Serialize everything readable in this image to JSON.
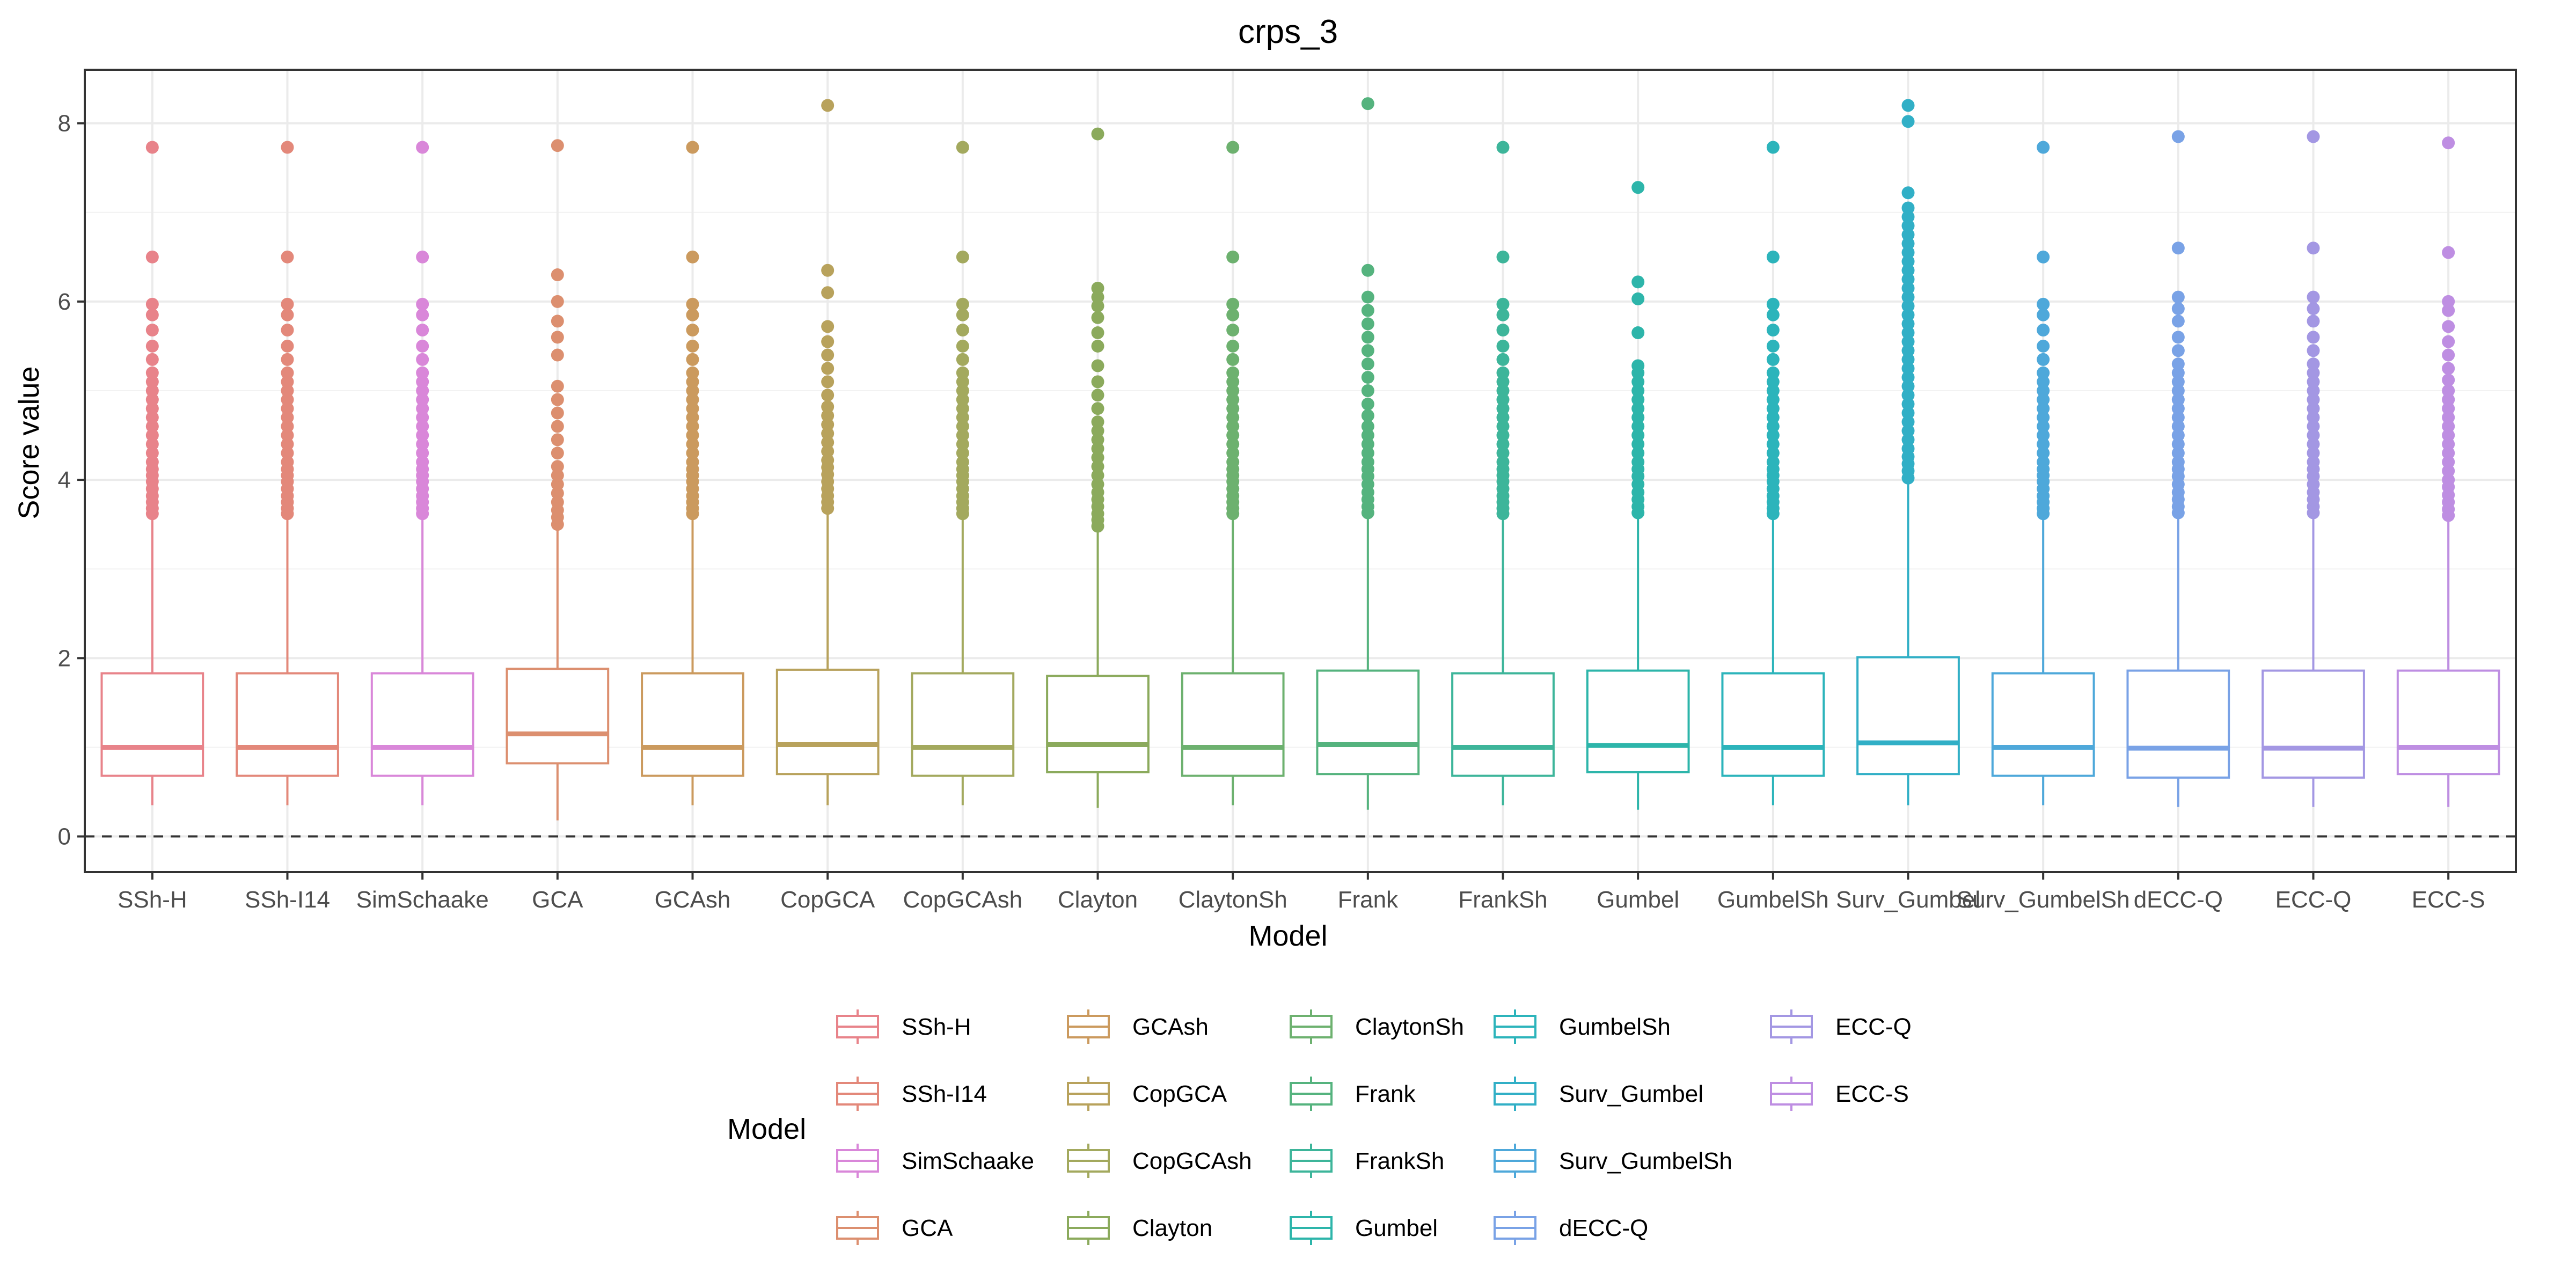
{
  "chart_data": {
    "type": "box",
    "title": "crps_3",
    "xlabel": "Model",
    "ylabel": "Score value",
    "ylim": [
      -0.4,
      8.6
    ],
    "yticks": [
      0,
      2,
      4,
      6,
      8
    ],
    "grid": true,
    "reference_line": {
      "y": 0,
      "style": "dashed"
    },
    "legend": {
      "title": "Model",
      "position": "bottom"
    },
    "categories": [
      "SSh-H",
      "SSh-I14",
      "SimSchaake",
      "GCA",
      "GCAsh",
      "CopGCA",
      "CopGCAsh",
      "Clayton",
      "ClaytonSh",
      "Frank",
      "FrankSh",
      "Gumbel",
      "GumbelSh",
      "Surv_Gumbel",
      "Surv_GumbelSh",
      "dECC-Q",
      "ECC-Q",
      "ECC-S"
    ],
    "colors": [
      "#F8766D",
      "#EC8239",
      "#DB72FB",
      "#E58700",
      "#C99800",
      "#A3A500",
      "#6BB100",
      "#7CAE00",
      "#00BA38",
      "#00C08B",
      "#00BFC4",
      "#00C1A3",
      "#00BCD8",
      "#00B0F6",
      "#35A2FF",
      "#619CFF",
      "#9590FF",
      "#C77CFF"
    ],
    "series": [
      {
        "name": "SSh-H",
        "color": "#E8838A",
        "q1": 0.68,
        "median": 1.0,
        "q3": 1.83,
        "whisker_low": 0.35,
        "whisker_high": 3.6,
        "outliers": [
          3.62,
          3.68,
          3.75,
          3.82,
          3.9,
          3.98,
          4.05,
          4.12,
          4.2,
          4.3,
          4.4,
          4.5,
          4.6,
          4.7,
          4.8,
          4.9,
          5.0,
          5.1,
          5.2,
          5.35,
          5.5,
          5.68,
          5.85,
          5.97,
          6.5,
          7.73
        ]
      },
      {
        "name": "SSh-I14",
        "color": "#E3887A",
        "q1": 0.68,
        "median": 1.0,
        "q3": 1.83,
        "whisker_low": 0.35,
        "whisker_high": 3.6,
        "outliers": [
          3.62,
          3.68,
          3.75,
          3.82,
          3.9,
          3.98,
          4.05,
          4.12,
          4.2,
          4.3,
          4.4,
          4.5,
          4.6,
          4.7,
          4.8,
          4.9,
          5.0,
          5.1,
          5.2,
          5.35,
          5.5,
          5.68,
          5.85,
          5.97,
          6.5,
          7.73
        ]
      },
      {
        "name": "SimSchaake",
        "color": "#D987D9",
        "q1": 0.68,
        "median": 1.0,
        "q3": 1.83,
        "whisker_low": 0.35,
        "whisker_high": 3.6,
        "outliers": [
          3.62,
          3.68,
          3.75,
          3.82,
          3.9,
          3.98,
          4.05,
          4.12,
          4.2,
          4.3,
          4.4,
          4.5,
          4.6,
          4.7,
          4.8,
          4.9,
          5.0,
          5.1,
          5.2,
          5.35,
          5.5,
          5.68,
          5.85,
          5.97,
          6.5,
          7.73
        ]
      },
      {
        "name": "GCA",
        "color": "#DC8F6F",
        "q1": 0.82,
        "median": 1.15,
        "q3": 1.88,
        "whisker_low": 0.18,
        "whisker_high": 3.45,
        "outliers": [
          3.5,
          3.58,
          3.66,
          3.75,
          3.85,
          3.95,
          4.05,
          4.15,
          4.3,
          4.45,
          4.6,
          4.75,
          4.9,
          5.05,
          5.4,
          5.6,
          5.78,
          6.0,
          6.3,
          7.75
        ]
      },
      {
        "name": "GCAsh",
        "color": "#CB9A5E",
        "q1": 0.68,
        "median": 1.0,
        "q3": 1.83,
        "whisker_low": 0.35,
        "whisker_high": 3.6,
        "outliers": [
          3.62,
          3.68,
          3.75,
          3.82,
          3.9,
          3.98,
          4.05,
          4.12,
          4.2,
          4.3,
          4.4,
          4.5,
          4.6,
          4.7,
          4.8,
          4.9,
          5.0,
          5.1,
          5.2,
          5.35,
          5.5,
          5.68,
          5.85,
          5.97,
          6.5,
          7.73
        ]
      },
      {
        "name": "CopGCA",
        "color": "#B8A25C",
        "q1": 0.7,
        "median": 1.03,
        "q3": 1.87,
        "whisker_low": 0.35,
        "whisker_high": 3.65,
        "outliers": [
          3.68,
          3.75,
          3.82,
          3.9,
          3.98,
          4.06,
          4.14,
          4.22,
          4.32,
          4.42,
          4.52,
          4.62,
          4.72,
          4.82,
          4.95,
          5.1,
          5.25,
          5.4,
          5.55,
          5.72,
          6.1,
          6.35,
          8.2
        ]
      },
      {
        "name": "CopGCAsh",
        "color": "#A3A95E",
        "q1": 0.68,
        "median": 1.0,
        "q3": 1.83,
        "whisker_low": 0.35,
        "whisker_high": 3.6,
        "outliers": [
          3.62,
          3.68,
          3.75,
          3.82,
          3.9,
          3.98,
          4.05,
          4.12,
          4.2,
          4.3,
          4.4,
          4.5,
          4.6,
          4.7,
          4.8,
          4.9,
          5.0,
          5.1,
          5.2,
          5.35,
          5.5,
          5.68,
          5.85,
          5.97,
          6.5,
          7.73
        ]
      },
      {
        "name": "Clayton",
        "color": "#8BAA5C",
        "q1": 0.72,
        "median": 1.03,
        "q3": 1.8,
        "whisker_low": 0.32,
        "whisker_high": 3.45,
        "outliers": [
          3.48,
          3.55,
          3.62,
          3.7,
          3.78,
          3.86,
          3.95,
          4.05,
          4.15,
          4.25,
          4.35,
          4.45,
          4.55,
          4.65,
          4.8,
          4.95,
          5.1,
          5.28,
          5.5,
          5.65,
          5.82,
          5.95,
          6.05,
          6.15,
          7.88
        ]
      },
      {
        "name": "ClaytonSh",
        "color": "#6DB16F",
        "q1": 0.68,
        "median": 1.0,
        "q3": 1.83,
        "whisker_low": 0.35,
        "whisker_high": 3.6,
        "outliers": [
          3.62,
          3.68,
          3.75,
          3.82,
          3.9,
          3.98,
          4.05,
          4.12,
          4.2,
          4.3,
          4.4,
          4.5,
          4.6,
          4.7,
          4.8,
          4.9,
          5.0,
          5.1,
          5.2,
          5.35,
          5.5,
          5.68,
          5.85,
          5.97,
          6.5,
          7.73
        ]
      },
      {
        "name": "Frank",
        "color": "#55B37E",
        "q1": 0.7,
        "median": 1.03,
        "q3": 1.86,
        "whisker_low": 0.3,
        "whisker_high": 3.6,
        "outliers": [
          3.63,
          3.7,
          3.78,
          3.86,
          3.95,
          4.04,
          4.12,
          4.2,
          4.3,
          4.4,
          4.5,
          4.6,
          4.72,
          4.85,
          5.0,
          5.15,
          5.3,
          5.45,
          5.6,
          5.75,
          5.9,
          6.05,
          6.35,
          8.22
        ]
      },
      {
        "name": "FrankSh",
        "color": "#3DB59A",
        "q1": 0.68,
        "median": 1.0,
        "q3": 1.83,
        "whisker_low": 0.35,
        "whisker_high": 3.6,
        "outliers": [
          3.62,
          3.68,
          3.75,
          3.82,
          3.9,
          3.98,
          4.05,
          4.12,
          4.2,
          4.3,
          4.4,
          4.5,
          4.6,
          4.7,
          4.8,
          4.9,
          5.0,
          5.1,
          5.2,
          5.35,
          5.5,
          5.68,
          5.85,
          5.97,
          6.5,
          7.73
        ]
      },
      {
        "name": "Gumbel",
        "color": "#2DB5AA",
        "q1": 0.72,
        "median": 1.02,
        "q3": 1.86,
        "whisker_low": 0.3,
        "whisker_high": 3.6,
        "outliers": [
          3.63,
          3.7,
          3.78,
          3.86,
          3.95,
          4.04,
          4.12,
          4.2,
          4.3,
          4.4,
          4.5,
          4.6,
          4.7,
          4.8,
          4.9,
          5.0,
          5.1,
          5.2,
          5.28,
          5.65,
          6.03,
          6.22,
          7.28
        ]
      },
      {
        "name": "GumbelSh",
        "color": "#2CB4BB",
        "q1": 0.68,
        "median": 1.0,
        "q3": 1.83,
        "whisker_low": 0.35,
        "whisker_high": 3.6,
        "outliers": [
          3.62,
          3.68,
          3.75,
          3.82,
          3.9,
          3.98,
          4.05,
          4.12,
          4.2,
          4.3,
          4.4,
          4.5,
          4.6,
          4.7,
          4.8,
          4.9,
          5.0,
          5.1,
          5.2,
          5.35,
          5.5,
          5.68,
          5.85,
          5.97,
          6.5,
          7.73
        ]
      },
      {
        "name": "Surv_Gumbel",
        "color": "#31AFC6",
        "q1": 0.7,
        "median": 1.05,
        "q3": 2.01,
        "whisker_low": 0.35,
        "whisker_high": 3.98,
        "outliers": [
          4.02,
          4.1,
          4.18,
          4.26,
          4.35,
          4.45,
          4.55,
          4.65,
          4.75,
          4.85,
          4.95,
          5.05,
          5.15,
          5.25,
          5.35,
          5.45,
          5.55,
          5.65,
          5.75,
          5.85,
          5.95,
          6.05,
          6.15,
          6.25,
          6.35,
          6.45,
          6.55,
          6.65,
          6.75,
          6.85,
          6.95,
          7.05,
          7.22,
          8.02,
          8.2
        ]
      },
      {
        "name": "Surv_GumbelSh",
        "color": "#4EA8DA",
        "q1": 0.68,
        "median": 1.0,
        "q3": 1.83,
        "whisker_low": 0.35,
        "whisker_high": 3.6,
        "outliers": [
          3.62,
          3.68,
          3.75,
          3.82,
          3.9,
          3.98,
          4.05,
          4.12,
          4.2,
          4.3,
          4.4,
          4.5,
          4.6,
          4.7,
          4.8,
          4.9,
          5.0,
          5.1,
          5.2,
          5.35,
          5.5,
          5.68,
          5.85,
          5.97,
          6.5,
          7.73
        ]
      },
      {
        "name": "dECC-Q",
        "color": "#79A2E6",
        "q1": 0.66,
        "median": 0.99,
        "q3": 1.86,
        "whisker_low": 0.33,
        "whisker_high": 3.6,
        "outliers": [
          3.63,
          3.7,
          3.78,
          3.86,
          3.95,
          4.04,
          4.12,
          4.2,
          4.3,
          4.4,
          4.5,
          4.6,
          4.7,
          4.8,
          4.9,
          5.0,
          5.1,
          5.2,
          5.3,
          5.45,
          5.6,
          5.78,
          5.92,
          6.05,
          6.6,
          7.85
        ]
      },
      {
        "name": "ECC-Q",
        "color": "#A397E3",
        "q1": 0.66,
        "median": 0.99,
        "q3": 1.86,
        "whisker_low": 0.33,
        "whisker_high": 3.6,
        "outliers": [
          3.63,
          3.7,
          3.78,
          3.86,
          3.95,
          4.04,
          4.12,
          4.2,
          4.3,
          4.4,
          4.5,
          4.6,
          4.7,
          4.8,
          4.9,
          5.0,
          5.1,
          5.2,
          5.3,
          5.45,
          5.6,
          5.78,
          5.92,
          6.05,
          6.6,
          7.85
        ]
      },
      {
        "name": "ECC-S",
        "color": "#BE8EE2",
        "q1": 0.7,
        "median": 1.0,
        "q3": 1.86,
        "whisker_low": 0.33,
        "whisker_high": 3.58,
        "outliers": [
          3.6,
          3.67,
          3.75,
          3.83,
          3.92,
          4.0,
          4.1,
          4.2,
          4.3,
          4.4,
          4.5,
          4.6,
          4.7,
          4.8,
          4.9,
          5.0,
          5.12,
          5.25,
          5.4,
          5.55,
          5.72,
          5.9,
          6.0,
          6.55,
          7.78
        ]
      }
    ]
  }
}
